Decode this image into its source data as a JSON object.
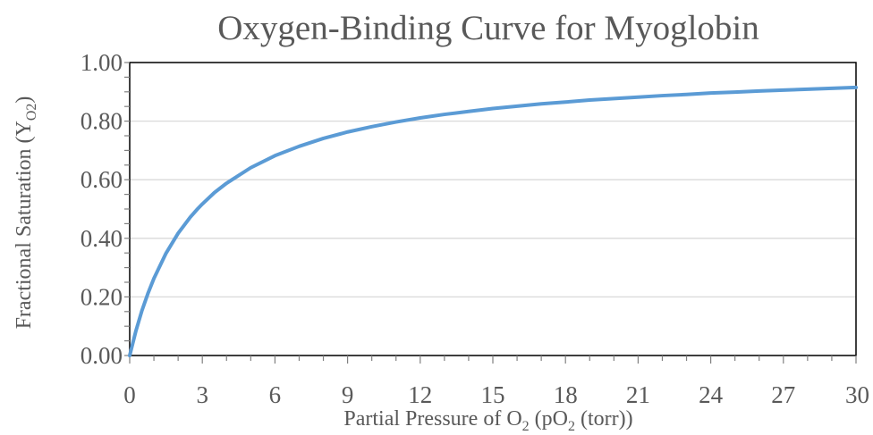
{
  "chart_data": {
    "type": "line",
    "title": "Oxygen-Binding Curve for Myoglobin",
    "xlabel": {
      "parts": [
        {
          "text": "Partial Pressure of O",
          "sub": false
        },
        {
          "text": "2",
          "sub": true
        },
        {
          "text": " (pO",
          "sub": false
        },
        {
          "text": "2",
          "sub": true
        },
        {
          "text": " (torr))",
          "sub": false
        }
      ]
    },
    "ylabel": {
      "parts": [
        {
          "text": "Fractional Saturation (Y",
          "sub": false
        },
        {
          "text": "O2",
          "sub": true
        },
        {
          "text": ")",
          "sub": false
        }
      ]
    },
    "xlim": [
      0,
      30
    ],
    "ylim": [
      0,
      1
    ],
    "xticks": [
      0,
      3,
      6,
      9,
      12,
      15,
      18,
      21,
      24,
      27,
      30
    ],
    "xtick_labels": [
      "0",
      "3",
      "6",
      "9",
      "12",
      "15",
      "18",
      "21",
      "24",
      "27",
      "30"
    ],
    "yticks": [
      0,
      0.2,
      0.4,
      0.6,
      0.8,
      1.0
    ],
    "ytick_labels": [
      "0.00",
      "0.20",
      "0.40",
      "0.60",
      "0.80",
      "1.00"
    ],
    "x_minor_step": 1,
    "y_minor_step": 0.05,
    "grid": "horizontal-major",
    "legend": "none",
    "series": [
      {
        "color": "#5b9bd5",
        "x": [
          0,
          0.25,
          0.5,
          0.75,
          1,
          1.5,
          2,
          2.5,
          2.8,
          3,
          3.5,
          4,
          5,
          6,
          7,
          8,
          9,
          10,
          11,
          12,
          13,
          14,
          15,
          16,
          17,
          18,
          19,
          20,
          21,
          22,
          23,
          24,
          25,
          26,
          27,
          28,
          29,
          30
        ],
        "y": [
          0,
          0.082,
          0.152,
          0.211,
          0.263,
          0.349,
          0.417,
          0.472,
          0.5,
          0.517,
          0.556,
          0.588,
          0.641,
          0.682,
          0.714,
          0.741,
          0.763,
          0.781,
          0.797,
          0.811,
          0.823,
          0.833,
          0.843,
          0.851,
          0.859,
          0.865,
          0.872,
          0.877,
          0.882,
          0.887,
          0.891,
          0.896,
          0.899,
          0.903,
          0.906,
          0.909,
          0.912,
          0.915
        ]
      }
    ]
  }
}
